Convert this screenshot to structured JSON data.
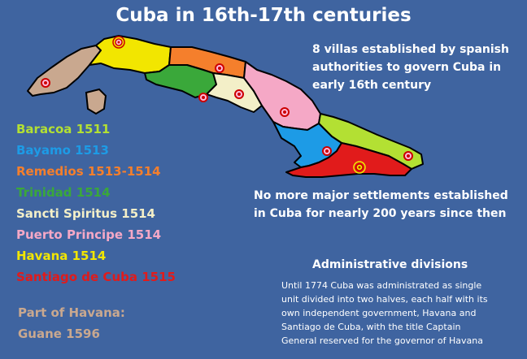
{
  "title": "Cuba in 16th-17th centuries",
  "villas_note": [
    "8 villas established by spanish",
    "authorities to govern Cuba in",
    "early 16th century"
  ],
  "settlements_note": [
    "No more major settlements established",
    "in Cuba for nearly 200 years since then"
  ],
  "legend": [
    {
      "label": "Baracoa 1511",
      "color": "#b3e033"
    },
    {
      "label": "Bayamo 1513",
      "color": "#1d9be6"
    },
    {
      "label": "Remedios 1513-1514",
      "color": "#f57f2c"
    },
    {
      "label": "Trinidad 1514",
      "color": "#3aa83a"
    },
    {
      "label": "Sancti Spiritus 1514",
      "color": "#f3efc8"
    },
    {
      "label": "Puerto Principe 1514",
      "color": "#f5a8c6"
    },
    {
      "label": "Havana 1514",
      "color": "#f2e600"
    },
    {
      "label": "Santiago de Cuba 1515",
      "color": "#e11b1b"
    }
  ],
  "guane": {
    "line1": "Part of Havana:",
    "line2": "Guane 1596",
    "color": "#c9a88f"
  },
  "admin": {
    "title": "Administrative divisions",
    "body": [
      "Until 1774 Cuba was administrated as single",
      "unit divided into two halves, each half with its",
      "own independent government, Havana and",
      "Santiago de Cuba, with the title Captain",
      "General reserved for the governor of Havana"
    ]
  }
}
